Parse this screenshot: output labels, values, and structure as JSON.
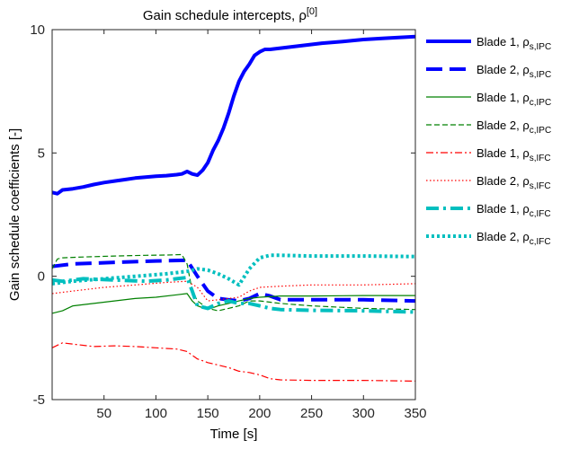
{
  "chart_data": {
    "type": "line",
    "title": "Gain schedule intercepts, ρ",
    "title_superscript": "[0]",
    "xlabel": "Time [s]",
    "ylabel": "Gain schedule coefficients [-]",
    "xlim": [
      0,
      350
    ],
    "ylim": [
      -5,
      10
    ],
    "xticks": [
      50,
      100,
      150,
      200,
      250,
      300,
      350
    ],
    "yticks": [
      -5,
      0,
      5,
      10
    ],
    "grid": false,
    "legend_position": "outside-right",
    "series": [
      {
        "name": "Blade 1, ρ",
        "subscript": "s,IPC",
        "color": "#0000ff",
        "style": "solid",
        "width": "thick",
        "x": [
          0,
          5,
          10,
          20,
          30,
          40,
          50,
          60,
          70,
          80,
          90,
          100,
          110,
          120,
          125,
          130,
          135,
          140,
          145,
          150,
          155,
          160,
          165,
          170,
          175,
          180,
          185,
          190,
          195,
          200,
          205,
          210,
          220,
          240,
          260,
          280,
          300,
          320,
          350
        ],
        "y": [
          3.4,
          3.35,
          3.5,
          3.55,
          3.62,
          3.72,
          3.8,
          3.86,
          3.92,
          3.98,
          4.02,
          4.06,
          4.08,
          4.12,
          4.15,
          4.25,
          4.15,
          4.1,
          4.3,
          4.6,
          5.1,
          5.5,
          6.0,
          6.6,
          7.3,
          7.9,
          8.3,
          8.6,
          8.95,
          9.1,
          9.2,
          9.2,
          9.25,
          9.35,
          9.45,
          9.52,
          9.6,
          9.65,
          9.72
        ]
      },
      {
        "name": "Blade 2, ρ",
        "subscript": "s,IPC",
        "color": "#0000ff",
        "style": "dashed",
        "width": "thick",
        "x": [
          0,
          20,
          50,
          100,
          130,
          140,
          150,
          160,
          170,
          180,
          190,
          200,
          210,
          220,
          250,
          300,
          350
        ],
        "y": [
          0.4,
          0.5,
          0.55,
          0.62,
          0.65,
          0.0,
          -0.6,
          -0.9,
          -0.95,
          -1.0,
          -0.9,
          -0.7,
          -0.8,
          -0.95,
          -0.95,
          -0.95,
          -1.0
        ]
      },
      {
        "name": "Blade 1, ρ",
        "subscript": "c,IPC",
        "color": "#008000",
        "style": "solid",
        "width": "thin",
        "x": [
          0,
          10,
          20,
          40,
          60,
          80,
          100,
          120,
          130,
          135,
          140,
          150,
          160,
          170,
          180,
          190,
          200,
          220,
          250,
          300,
          350
        ],
        "y": [
          -1.5,
          -1.4,
          -1.2,
          -1.1,
          -1.0,
          -0.9,
          -0.85,
          -0.75,
          -0.7,
          -1.0,
          -1.2,
          -1.35,
          -1.2,
          -1.1,
          -1.0,
          -0.9,
          -0.85,
          -0.8,
          -0.8,
          -0.78,
          -0.78
        ]
      },
      {
        "name": "Blade 2, ρ",
        "subscript": "c,IPC",
        "color": "#008000",
        "style": "dashed",
        "width": "thin",
        "x": [
          0,
          5,
          10,
          30,
          60,
          90,
          110,
          125,
          130,
          135,
          140,
          150,
          160,
          170,
          180,
          190,
          200,
          220,
          250,
          300,
          350
        ],
        "y": [
          0.3,
          0.7,
          0.75,
          0.78,
          0.82,
          0.85,
          0.86,
          0.88,
          0.5,
          -0.6,
          -1.0,
          -1.3,
          -1.4,
          -1.3,
          -1.2,
          -1.0,
          -1.0,
          -1.1,
          -1.2,
          -1.3,
          -1.35
        ]
      },
      {
        "name": "Blade 1, ρ",
        "subscript": "s,IFC",
        "color": "#ff0000",
        "style": "dashdot",
        "width": "thin",
        "x": [
          0,
          10,
          20,
          40,
          60,
          80,
          100,
          120,
          130,
          135,
          140,
          150,
          160,
          170,
          180,
          190,
          200,
          210,
          220,
          250,
          300,
          350
        ],
        "y": [
          -2.9,
          -2.7,
          -2.75,
          -2.85,
          -2.82,
          -2.85,
          -2.9,
          -2.95,
          -3.05,
          -3.2,
          -3.35,
          -3.5,
          -3.6,
          -3.7,
          -3.85,
          -3.9,
          -4.0,
          -4.15,
          -4.2,
          -4.22,
          -4.22,
          -4.25
        ]
      },
      {
        "name": "Blade 2, ρ",
        "subscript": "s,IFC",
        "color": "#ff0000",
        "style": "dotted",
        "width": "thin",
        "x": [
          0,
          20,
          50,
          80,
          110,
          130,
          140,
          150,
          160,
          170,
          180,
          190,
          200,
          220,
          250,
          300,
          350
        ],
        "y": [
          -0.7,
          -0.6,
          -0.45,
          -0.35,
          -0.25,
          -0.2,
          -0.45,
          -1.0,
          -0.95,
          -0.9,
          -0.85,
          -0.6,
          -0.45,
          -0.4,
          -0.35,
          -0.35,
          -0.3
        ]
      },
      {
        "name": "Blade 1, ρ",
        "subscript": "c,IFC",
        "color": "#00bfbf",
        "style": "dashdot",
        "width": "thick",
        "x": [
          0,
          10,
          30,
          60,
          90,
          110,
          120,
          130,
          135,
          140,
          150,
          160,
          170,
          180,
          190,
          200,
          210,
          220,
          250,
          300,
          350
        ],
        "y": [
          -0.15,
          -0.2,
          -0.1,
          -0.15,
          -0.2,
          -0.15,
          -0.1,
          -0.05,
          -0.6,
          -1.2,
          -1.3,
          -1.1,
          -1.0,
          -1.1,
          -1.1,
          -1.2,
          -1.3,
          -1.35,
          -1.38,
          -1.4,
          -1.45
        ]
      },
      {
        "name": "Blade 2, ρ",
        "subscript": "c,IFC",
        "color": "#00bfbf",
        "style": "dotted",
        "width": "thick",
        "x": [
          0,
          20,
          50,
          80,
          110,
          130,
          140,
          150,
          160,
          170,
          180,
          190,
          200,
          210,
          220,
          250,
          300,
          350
        ],
        "y": [
          -0.3,
          -0.2,
          -0.1,
          0.0,
          0.1,
          0.2,
          0.3,
          0.25,
          0.1,
          -0.1,
          -0.35,
          0.3,
          0.75,
          0.85,
          0.85,
          0.82,
          0.82,
          0.8
        ]
      }
    ]
  }
}
